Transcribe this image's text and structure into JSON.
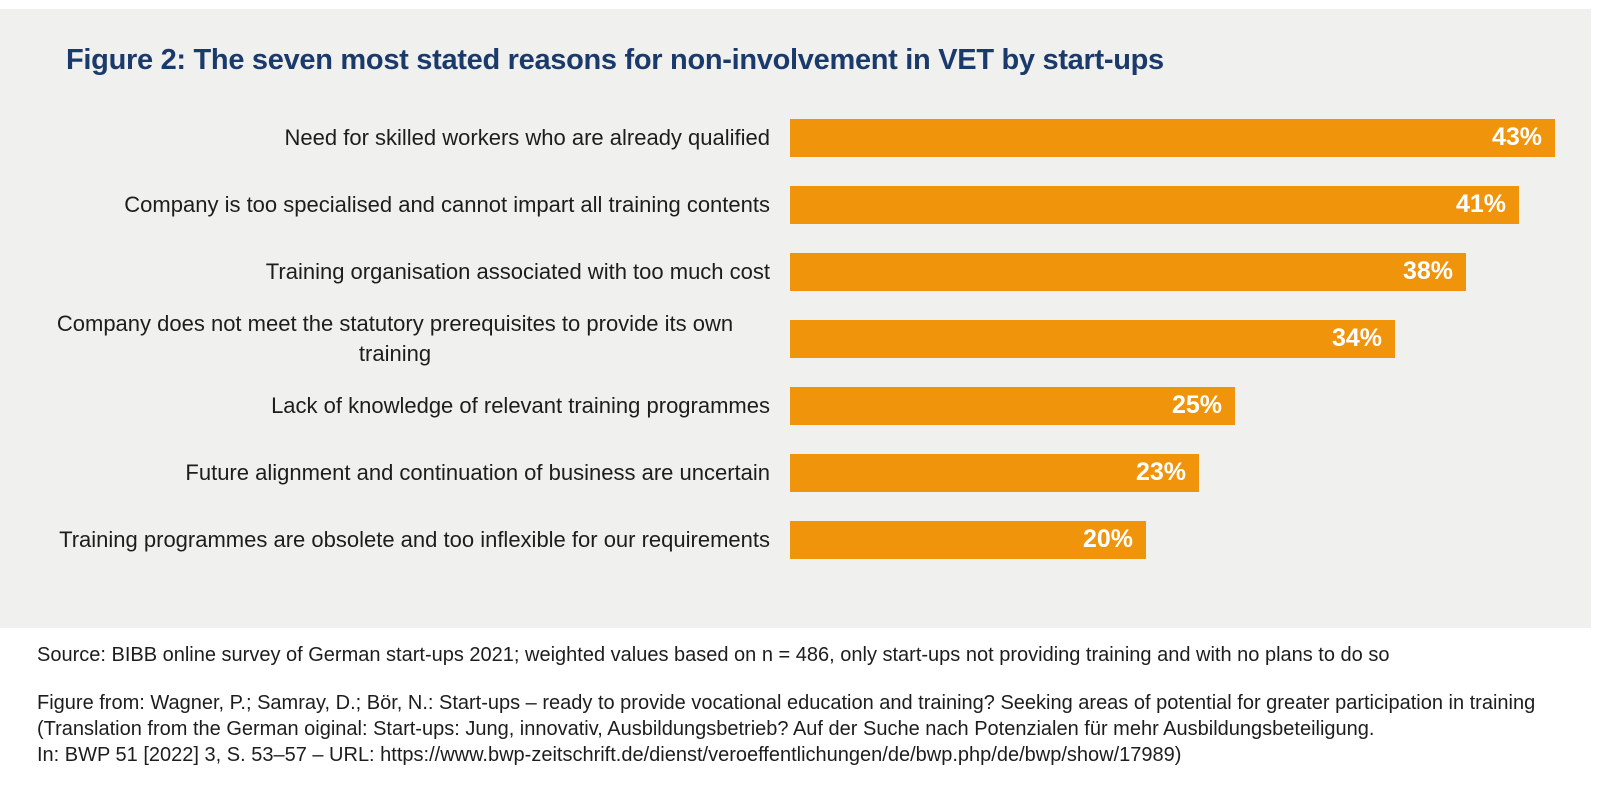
{
  "title": "Figure 2: The seven most stated reasons for non-involvement in VET by start-ups",
  "chart_data": {
    "type": "bar",
    "orientation": "horizontal",
    "title": "Figure 2: The seven most stated reasons for non-involvement in VET by start-ups",
    "categories": [
      "Need for skilled workers who are already qualified",
      "Company is too specialised and cannot impart all training contents",
      "Training organisation associated with too much cost",
      "Company does not meet the statutory prerequisites to provide its own training",
      "Lack of knowledge of relevant training programmes",
      "Future alignment and continuation of business are uncertain",
      "Training programmes are obsolete and too inflexible for our requirements"
    ],
    "values": [
      43,
      41,
      38,
      34,
      25,
      23,
      20
    ],
    "value_labels": [
      "43%",
      "41%",
      "38%",
      "34%",
      "25%",
      "23%",
      "20%"
    ],
    "unit": "%",
    "xlim": [
      0,
      45
    ],
    "gridlines": false,
    "legend_position": "none",
    "value_labels_position": "inside-end",
    "bar_color": "#F0940C",
    "value_label_color": "#FFFFFF"
  },
  "footer": {
    "source": "Source: BIBB online survey of German start-ups 2021; weighted values based on n = 486, only start-ups not providing training and with no plans to do so",
    "figure_from_lines": [
      "Figure from: Wagner, P.; Samray, D.; Bör, N.: Start-ups – ready to provide vocational education and training? Seeking areas of potential for greater participation in training",
      "(Translation from the German oiginal: Start-ups: Jung, innovativ, Ausbildungsbetrieb? Auf der Suche nach Potenzialen für mehr Ausbildungsbeteiligung.",
      "In: BWP 51 [2022] 3, S. 53–57 – URL: https://www.bwp-zeitschrift.de/dienst/veroeffentlichungen/de/bwp.php/de/bwp/show/17989)"
    ]
  },
  "colors": {
    "page_background": "#FFFFFF",
    "panel_background": "#F0F0EE",
    "title": "#1B3A6C",
    "bar": "#F0940C",
    "label_text": "#1D1D1B",
    "value_text": "#FFFFFF"
  }
}
